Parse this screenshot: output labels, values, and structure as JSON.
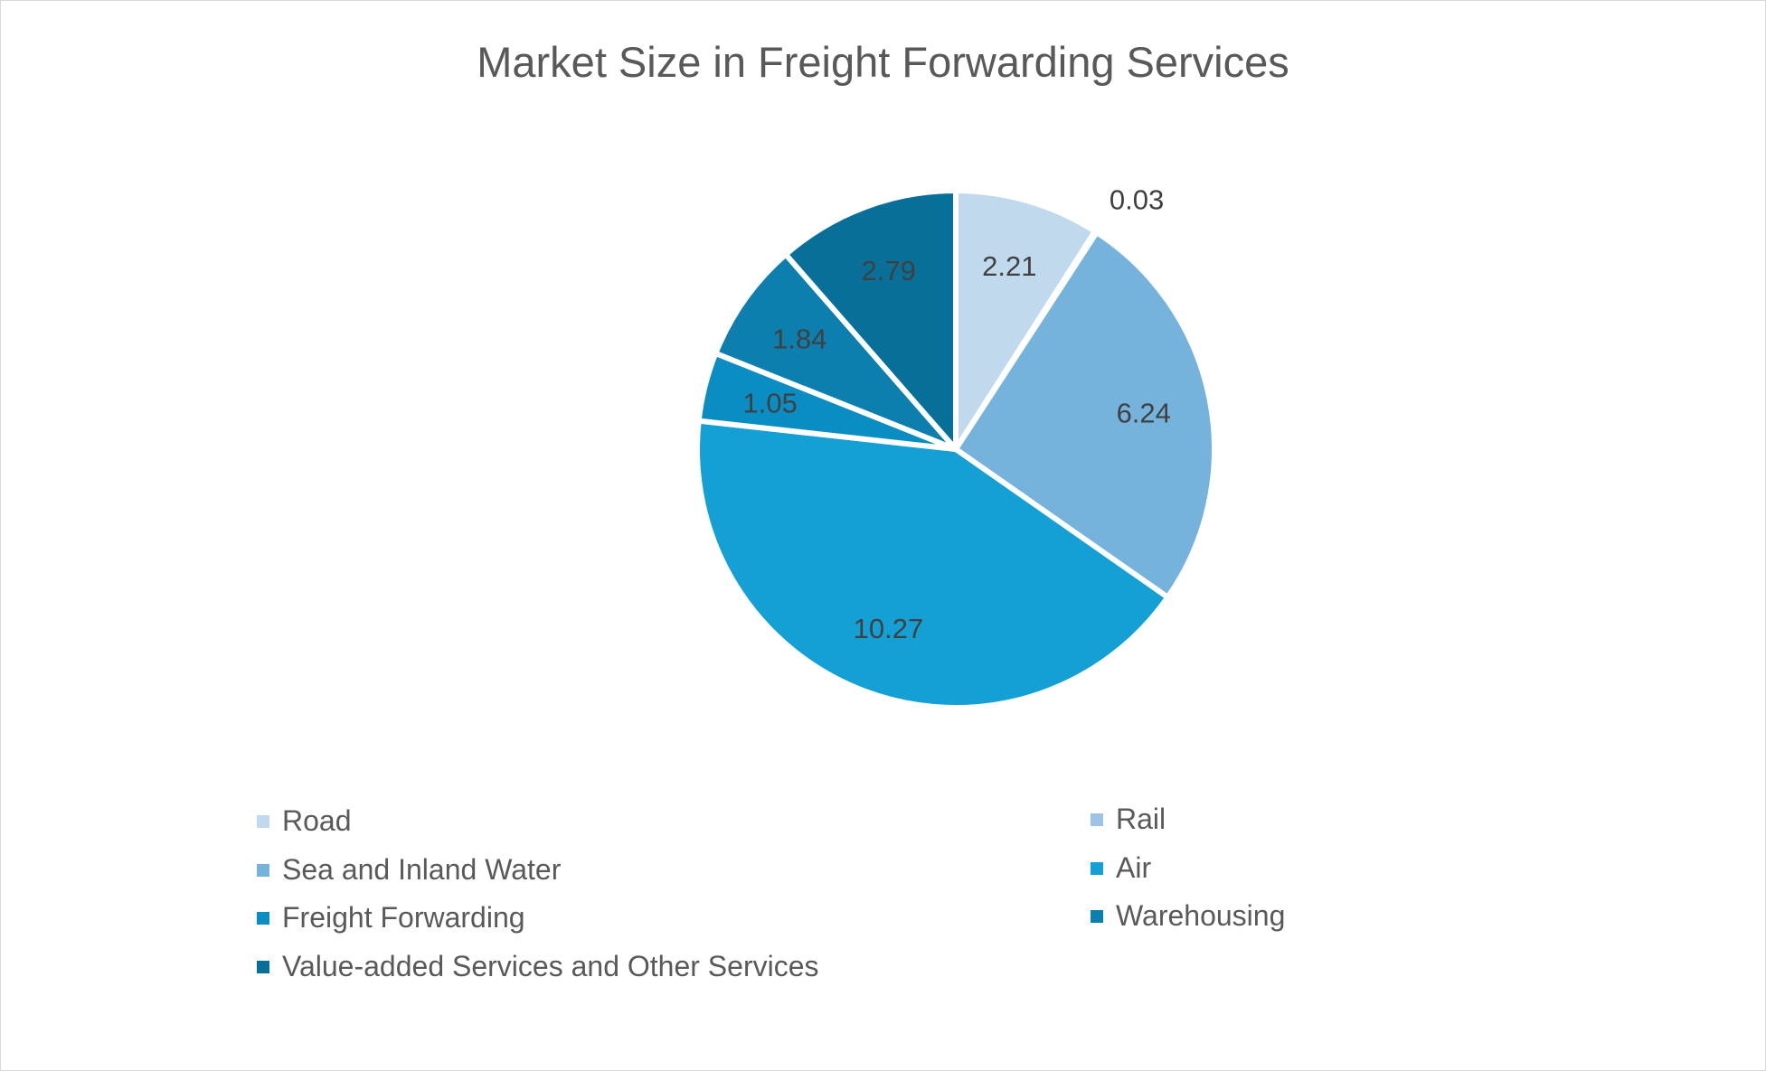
{
  "chart_data": {
    "type": "pie",
    "title": "Market Size in Freight Forwarding Services",
    "categories": [
      "Road",
      "Rail",
      "Sea and Inland Water",
      "Air",
      "Freight Forwarding",
      "Warehousing",
      "Value-added Services and Other Services"
    ],
    "values": [
      2.21,
      0.03,
      6.24,
      10.27,
      1.05,
      1.84,
      2.79
    ],
    "labels": [
      "2.21",
      "0.03",
      "6.24",
      "10.27",
      "1.05",
      "1.84",
      "2.79"
    ],
    "colors": [
      "#C0D9EC",
      "#9DC3E6",
      "#75B3DD",
      "#149FD5",
      "#0A8DC2",
      "#0C7FAF",
      "#086F98"
    ],
    "start_angle_deg": 0,
    "direction": "clockwise",
    "legend_position": "bottom"
  }
}
